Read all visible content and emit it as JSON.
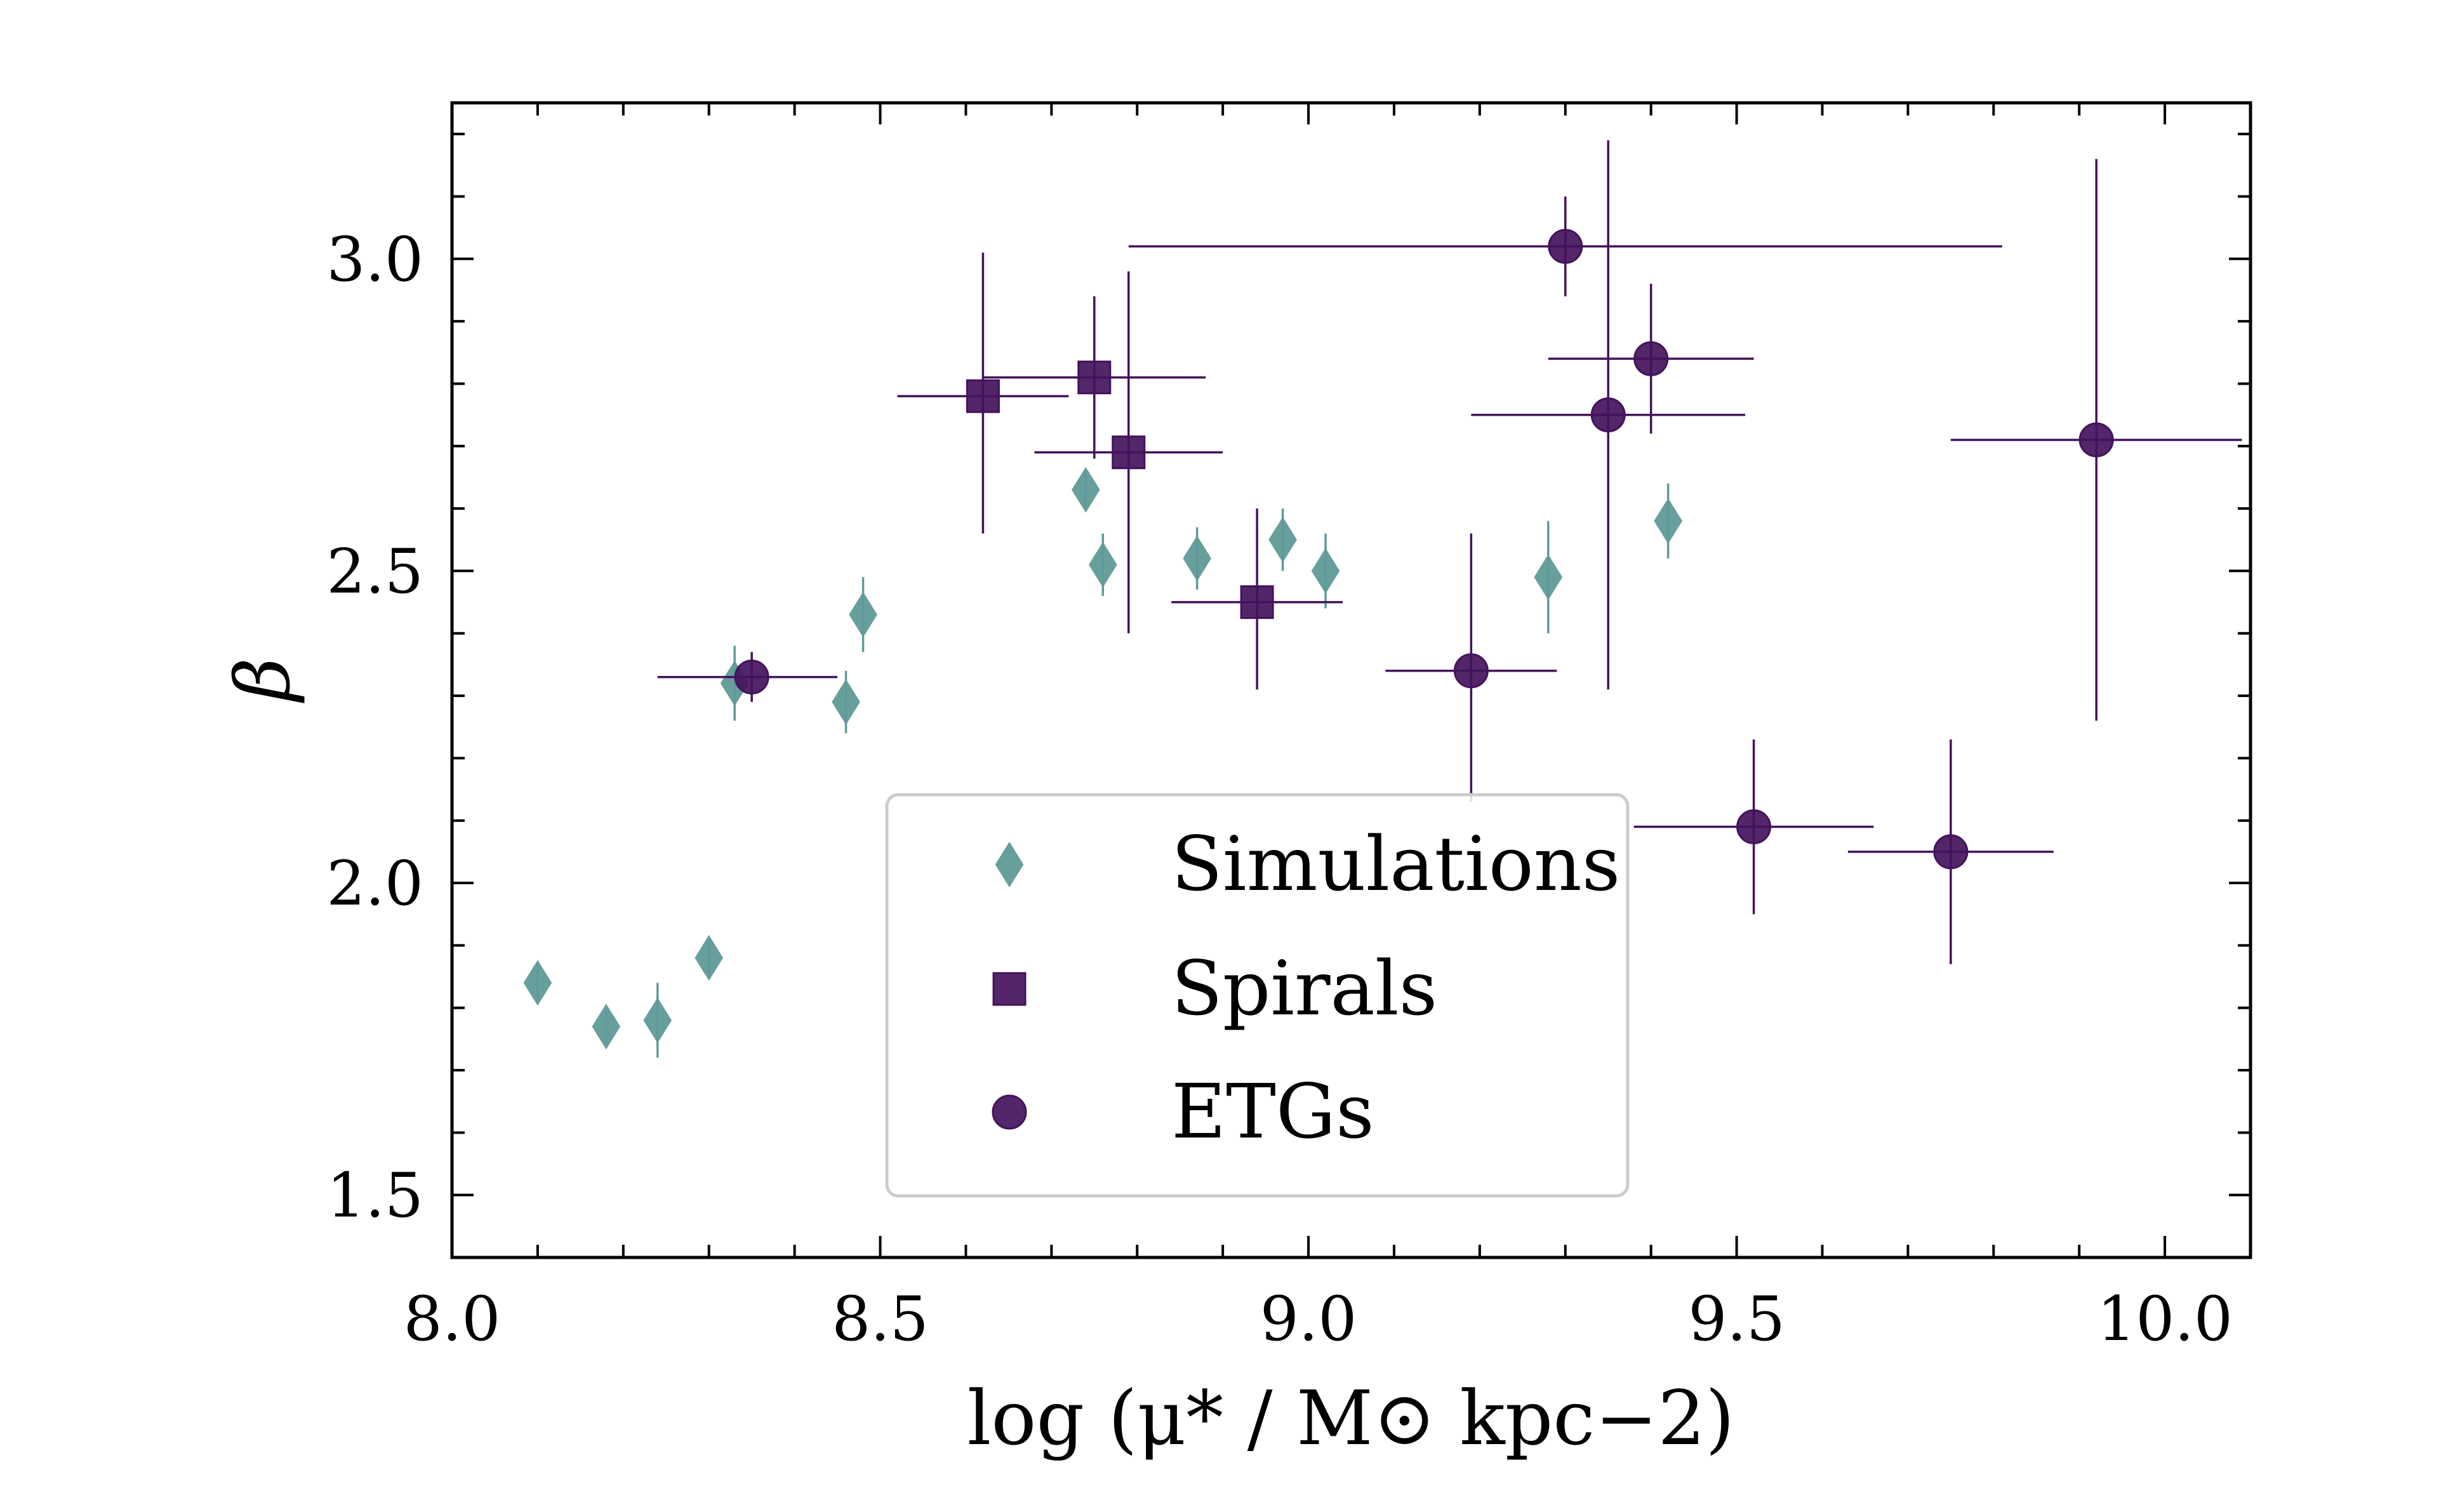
{
  "chart_data": {
    "type": "scatter",
    "xlabel": "log (μ* / M⊙ kpc−2)",
    "ylabel": "β",
    "xlim": [
      8.0,
      10.1
    ],
    "ylim": [
      1.4,
      3.25
    ],
    "x_ticks": [
      {
        "value": 8.0,
        "label": "8.0"
      },
      {
        "value": 8.5,
        "label": "8.5"
      },
      {
        "value": 9.0,
        "label": "9.0"
      },
      {
        "value": 9.5,
        "label": "9.5"
      },
      {
        "value": 10.0,
        "label": "10.0"
      }
    ],
    "y_ticks": [
      {
        "value": 1.5,
        "label": "1.5"
      },
      {
        "value": 2.0,
        "label": "2.0"
      },
      {
        "value": 2.5,
        "label": "2.5"
      },
      {
        "value": 3.0,
        "label": "3.0"
      }
    ],
    "x_minor_step": 0.1,
    "y_minor_step": 0.1,
    "legend_placement": "lower-center",
    "grid": false,
    "series": [
      {
        "name": "Simulations",
        "marker": "diamond",
        "color": "#5f9a98",
        "points": [
          {
            "x": 8.1,
            "y": 1.84,
            "yerr": 0.03
          },
          {
            "x": 8.18,
            "y": 1.77,
            "yerr": 0.03
          },
          {
            "x": 8.24,
            "y": 1.78,
            "yerr": 0.06
          },
          {
            "x": 8.3,
            "y": 1.88,
            "yerr": 0.03
          },
          {
            "x": 8.33,
            "y": 2.32,
            "yerr": 0.06
          },
          {
            "x": 8.46,
            "y": 2.29,
            "yerr": 0.05
          },
          {
            "x": 8.48,
            "y": 2.43,
            "yerr": 0.06
          },
          {
            "x": 8.74,
            "y": 2.63,
            "yerr": 0.03
          },
          {
            "x": 8.76,
            "y": 2.51,
            "yerr": 0.05
          },
          {
            "x": 8.87,
            "y": 2.52,
            "yerr": 0.05
          },
          {
            "x": 8.97,
            "y": 2.55,
            "yerr": 0.05
          },
          {
            "x": 9.02,
            "y": 2.5,
            "yerr": 0.06
          },
          {
            "x": 9.28,
            "y": 2.49,
            "yerr": 0.09
          },
          {
            "x": 9.42,
            "y": 2.58,
            "yerr": 0.06
          }
        ]
      },
      {
        "name": "Spirals",
        "marker": "square",
        "color": "#44125c",
        "points": [
          {
            "x": 8.62,
            "y": 2.78,
            "xerr_low": 0.1,
            "xerr_high": 0.1,
            "yerr_low": 0.22,
            "yerr_high": 0.23
          },
          {
            "x": 8.75,
            "y": 2.81,
            "xerr_low": 0.13,
            "xerr_high": 0.13,
            "yerr_low": 0.13,
            "yerr_high": 0.13
          },
          {
            "x": 8.79,
            "y": 2.69,
            "xerr_low": 0.11,
            "xerr_high": 0.11,
            "yerr_low": 0.29,
            "yerr_high": 0.29
          },
          {
            "x": 8.94,
            "y": 2.45,
            "xerr_low": 0.1,
            "xerr_high": 0.1,
            "yerr_low": 0.14,
            "yerr_high": 0.15
          }
        ]
      },
      {
        "name": "ETGs",
        "marker": "circle",
        "color": "#44125c",
        "points": [
          {
            "x": 8.35,
            "y": 2.33,
            "xerr_low": 0.11,
            "xerr_high": 0.1,
            "yerr_low": 0.04,
            "yerr_high": 0.04
          },
          {
            "x": 9.19,
            "y": 2.34,
            "xerr_low": 0.1,
            "xerr_high": 0.1,
            "yerr_low": 0.21,
            "yerr_high": 0.22
          },
          {
            "x": 9.3,
            "y": 3.02,
            "xerr_low": 0.51,
            "xerr_high": 0.51,
            "yerr_low": 0.08,
            "yerr_high": 0.08
          },
          {
            "x": 9.35,
            "y": 2.75,
            "xerr_low": 0.16,
            "xerr_high": 0.16,
            "yerr_low": 0.44,
            "yerr_high": 0.44
          },
          {
            "x": 9.4,
            "y": 2.84,
            "xerr_low": 0.12,
            "xerr_high": 0.12,
            "yerr_low": 0.12,
            "yerr_high": 0.12
          },
          {
            "x": 9.52,
            "y": 2.09,
            "xerr_low": 0.14,
            "xerr_high": 0.14,
            "yerr_low": 0.14,
            "yerr_high": 0.14
          },
          {
            "x": 9.75,
            "y": 2.05,
            "xerr_low": 0.12,
            "xerr_high": 0.12,
            "yerr_low": 0.18,
            "yerr_high": 0.18
          },
          {
            "x": 9.92,
            "y": 2.71,
            "xerr_low": 0.17,
            "xerr_high": 0.17,
            "yerr_low": 0.45,
            "yerr_high": 0.45
          }
        ]
      }
    ]
  }
}
